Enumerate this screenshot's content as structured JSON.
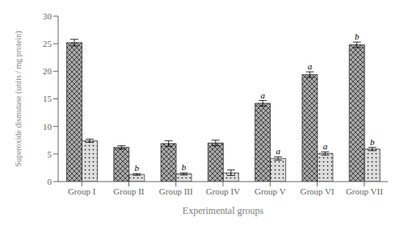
{
  "chart_data": {
    "type": "bar",
    "xlabel": "Experimental groups",
    "ylabel": "Superoxide dismutase (units / mg protein)",
    "categories": [
      "Group I",
      "Group II",
      "Group III",
      "Group IV",
      "Group V",
      "Group VI",
      "Group VII"
    ],
    "series": [
      {
        "color": "#aaaaaa",
        "values": [
          25.2,
          6.2,
          6.9,
          7.0,
          14.2,
          19.4,
          24.8
        ],
        "errors": [
          0.6,
          0.3,
          0.5,
          0.5,
          0.5,
          0.5,
          0.5
        ],
        "annotations": [
          null,
          null,
          null,
          null,
          "a",
          "a",
          "b"
        ]
      },
      {
        "color": "#dddddd",
        "values": [
          7.4,
          1.3,
          1.4,
          1.6,
          4.2,
          5.1,
          5.9
        ],
        "errors": [
          0.3,
          0.15,
          0.2,
          0.5,
          0.3,
          0.3,
          0.3
        ],
        "annotations": [
          null,
          "b",
          "b",
          null,
          "a",
          "a",
          "b"
        ]
      }
    ],
    "ylim": [
      0,
      30
    ],
    "yticks": [
      0,
      5,
      10,
      15,
      20,
      25,
      30
    ],
    "grid": false
  }
}
